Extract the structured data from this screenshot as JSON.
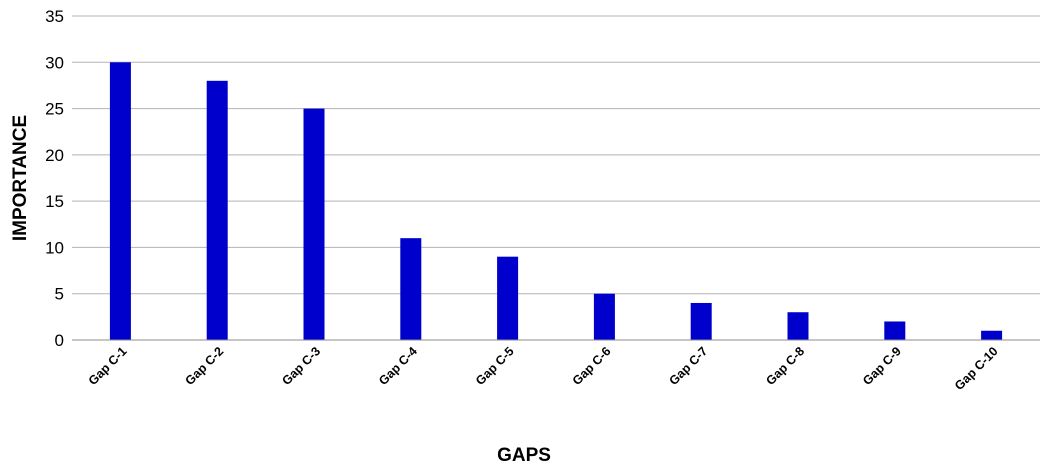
{
  "chart_data": {
    "type": "bar",
    "categories": [
      "Gap C-1",
      "Gap C-2",
      "Gap C-3",
      "Gap C-4",
      "Gap C-5",
      "Gap C-6",
      "Gap C-7",
      "Gap C-8",
      "Gap C-9",
      "Gap C-10"
    ],
    "values": [
      30,
      28,
      25,
      11,
      9,
      5,
      4,
      3,
      2,
      1
    ],
    "title": "",
    "xlabel": "GAPS",
    "ylabel": "IMPORTANCE",
    "ylim": [
      0,
      35
    ],
    "yticks": [
      0,
      5,
      10,
      15,
      20,
      25,
      30,
      35
    ],
    "grid": true,
    "bar_color": "#0000CC"
  }
}
